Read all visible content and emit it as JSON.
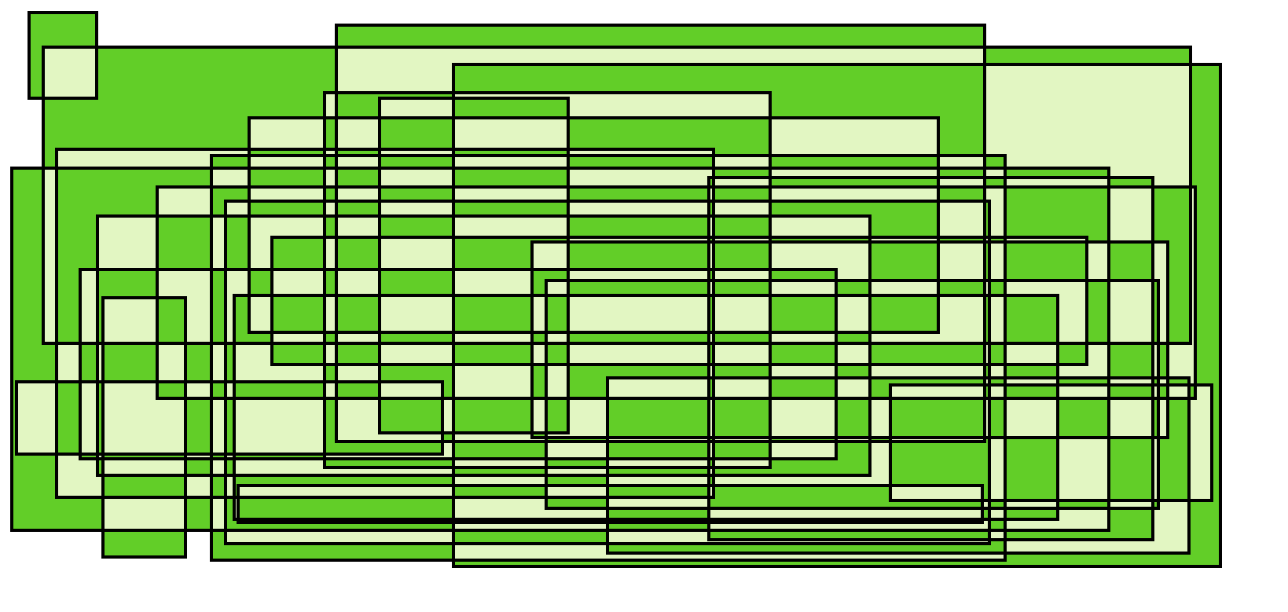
{
  "figure": {
    "colors": {
      "background": "#ffffff",
      "odd_overlap_fill": "#62CE28",
      "even_overlap_fill": "#E2F6C2",
      "outline": "#000000"
    },
    "fill_rule": "evenodd"
  }
}
